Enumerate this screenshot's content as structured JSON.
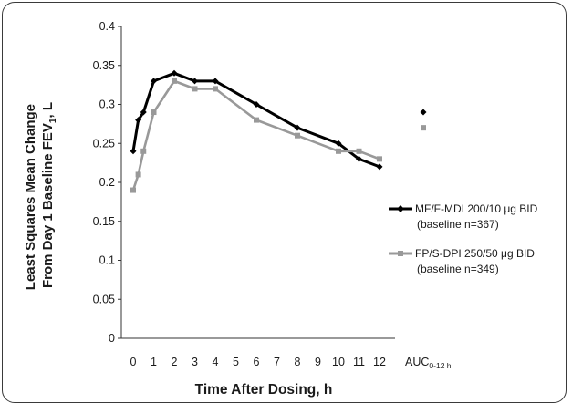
{
  "chart_data": {
    "type": "line",
    "xlabel": "Time After Dosing, h",
    "ylabel_line1": "Least Squares Mean Change",
    "ylabel_line2": "From Day 1 Baseline FEV",
    "ylabel_sub": "1",
    "ylabel_suffix": ", L",
    "ylim": [
      0,
      0.4
    ],
    "y_ticks": [
      "0",
      "0.05",
      "0.1",
      "0.15",
      "0.2",
      "0.25",
      "0.3",
      "0.35",
      "0.4"
    ],
    "x_ticks": [
      "0",
      "1",
      "2",
      "3",
      "4",
      "5",
      "6",
      "7",
      "8",
      "9",
      "10",
      "11",
      "12"
    ],
    "auc_label": "AUC",
    "auc_sub": "0-12 h",
    "grid": false,
    "legend_position": "right",
    "series": [
      {
        "name": "MF/F-MDI 200/10 μg BID",
        "baseline": "(baseline n=367)",
        "color": "#000000",
        "marker": "diamond",
        "x": [
          0,
          0.25,
          0.5,
          1,
          2,
          3,
          4,
          6,
          8,
          10,
          11,
          12
        ],
        "y": [
          0.24,
          0.28,
          0.29,
          0.33,
          0.34,
          0.33,
          0.33,
          0.3,
          0.27,
          0.25,
          0.23,
          0.22
        ],
        "auc": 0.29
      },
      {
        "name": "FP/S-DPI 250/50 μg BID",
        "baseline": "(baseline n=349)",
        "color": "#999999",
        "marker": "square",
        "x": [
          0,
          0.25,
          0.5,
          1,
          2,
          3,
          4,
          6,
          8,
          10,
          11,
          12
        ],
        "y": [
          0.19,
          0.21,
          0.24,
          0.29,
          0.33,
          0.32,
          0.32,
          0.28,
          0.26,
          0.24,
          0.24,
          0.23
        ],
        "auc": 0.27
      }
    ]
  }
}
